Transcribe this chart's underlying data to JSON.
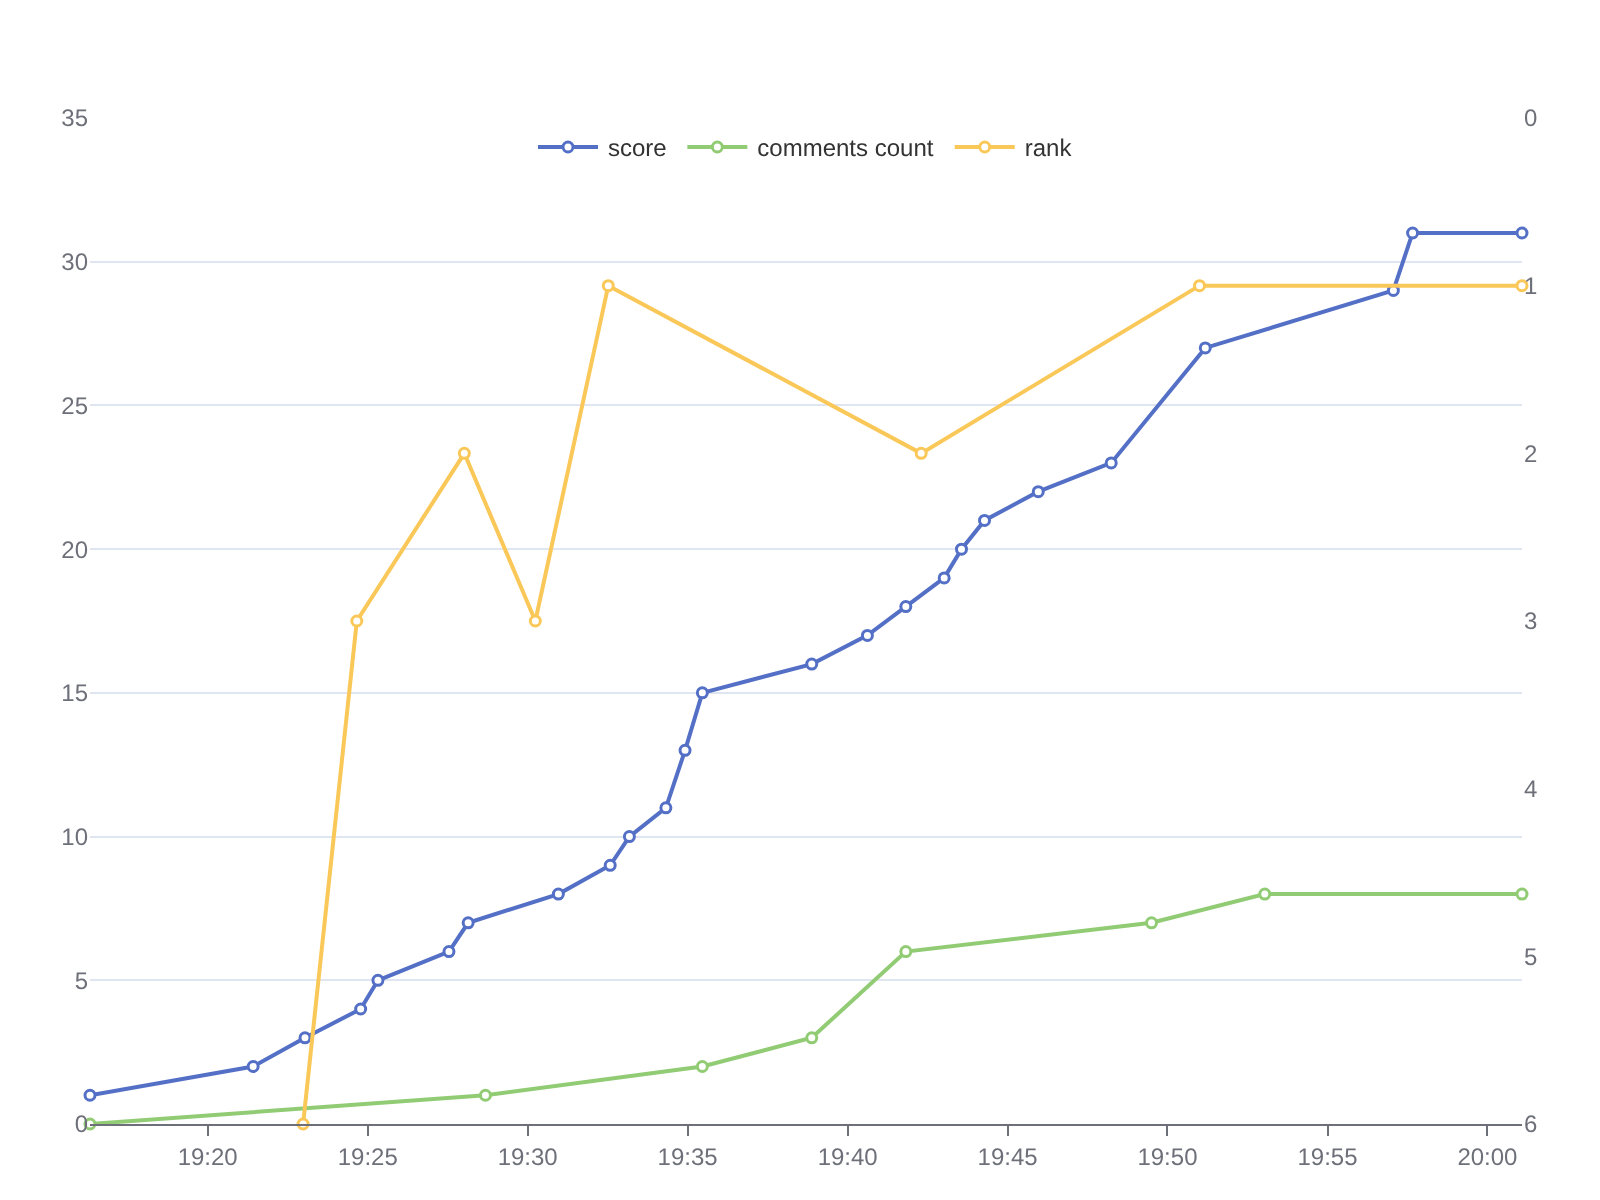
{
  "chart_data": {
    "type": "line",
    "legend": "top",
    "marker": "circle",
    "line_style": "solid",
    "grid": "y",
    "xlim": [
      19.272,
      20.018
    ],
    "xticks": [
      {
        "value": 19.3333,
        "label": "19:20"
      },
      {
        "value": 19.4167,
        "label": "19:25"
      },
      {
        "value": 19.5,
        "label": "19:30"
      },
      {
        "value": 19.5833,
        "label": "19:35"
      },
      {
        "value": 19.6667,
        "label": "19:40"
      },
      {
        "value": 19.75,
        "label": "19:45"
      },
      {
        "value": 19.8333,
        "label": "19:50"
      },
      {
        "value": 19.9167,
        "label": "19:55"
      },
      {
        "value": 20.0,
        "label": "20:00"
      }
    ],
    "ylim": [
      0,
      35
    ],
    "yticks": [
      0,
      5,
      10,
      15,
      20,
      25,
      30,
      35
    ],
    "y2lim": [
      6,
      0
    ],
    "y2ticks": [
      0,
      1,
      2,
      3,
      4,
      5,
      6
    ],
    "series": [
      {
        "name": "score",
        "color": "#5470c6",
        "x": [
          19.272,
          19.357,
          19.384,
          19.413,
          19.422,
          19.459,
          19.469,
          19.516,
          19.543,
          19.553,
          19.572,
          19.582,
          19.591,
          19.648,
          19.677,
          19.697,
          19.717,
          19.726,
          19.738,
          19.766,
          19.804,
          19.853,
          19.951,
          19.961,
          20.018
        ],
        "values": [
          1,
          2,
          3,
          4,
          5,
          6,
          7,
          8,
          9,
          10,
          11,
          13,
          15,
          16,
          17,
          18,
          19,
          20,
          21,
          22,
          23,
          27,
          29,
          31,
          31
        ]
      },
      {
        "name": "comments count",
        "color": "#91cc75",
        "x": [
          19.272,
          19.478,
          19.591,
          19.648,
          19.697,
          19.825,
          19.884,
          20.018
        ],
        "values": [
          0,
          1,
          2,
          3,
          6,
          7,
          8,
          8
        ]
      },
      {
        "name": "rank",
        "color": "#fac858",
        "axis": "y2",
        "x": [
          19.383,
          19.411,
          19.467,
          19.504,
          19.542,
          19.705,
          19.85,
          20.018
        ],
        "values": [
          6,
          3,
          2,
          3,
          1,
          2,
          1,
          1
        ]
      }
    ]
  }
}
